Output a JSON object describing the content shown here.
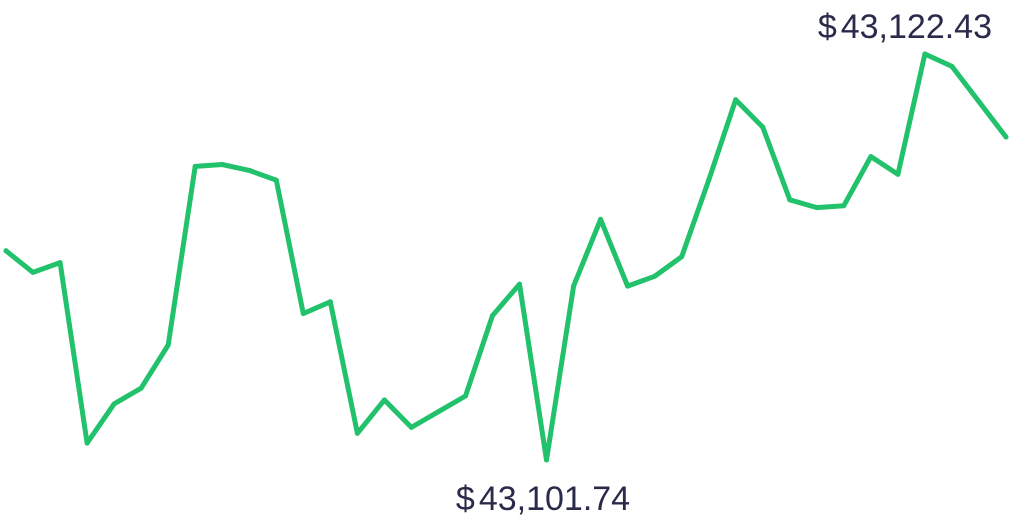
{
  "chart_data": {
    "type": "line",
    "title": "",
    "xlabel": "",
    "ylabel": "",
    "grid": false,
    "legend": "none",
    "currency_symbol": "$",
    "line_color": "#22c16b",
    "label_color": "#2a2a4a",
    "ylim": [
      43101.74,
      43122.43
    ],
    "series": [
      {
        "values": [
          43112.4,
          43111.3,
          43111.8,
          43102.6,
          43104.6,
          43105.4,
          43107.6,
          43116.7,
          43116.8,
          43116.5,
          43116.0,
          43109.2,
          43109.8,
          43103.1,
          43104.8,
          43103.4,
          43104.2,
          43105.0,
          43109.1,
          43110.7,
          43101.74,
          43110.6,
          43114.0,
          43110.6,
          43111.1,
          43112.1,
          43116.0,
          43120.1,
          43118.7,
          43115.0,
          43114.6,
          43114.7,
          43117.2,
          43116.3,
          43122.43,
          43121.8,
          43120.0,
          43118.2
        ]
      }
    ],
    "annotations": {
      "high_label": "43,122.43",
      "low_label": "43,101.74"
    }
  }
}
